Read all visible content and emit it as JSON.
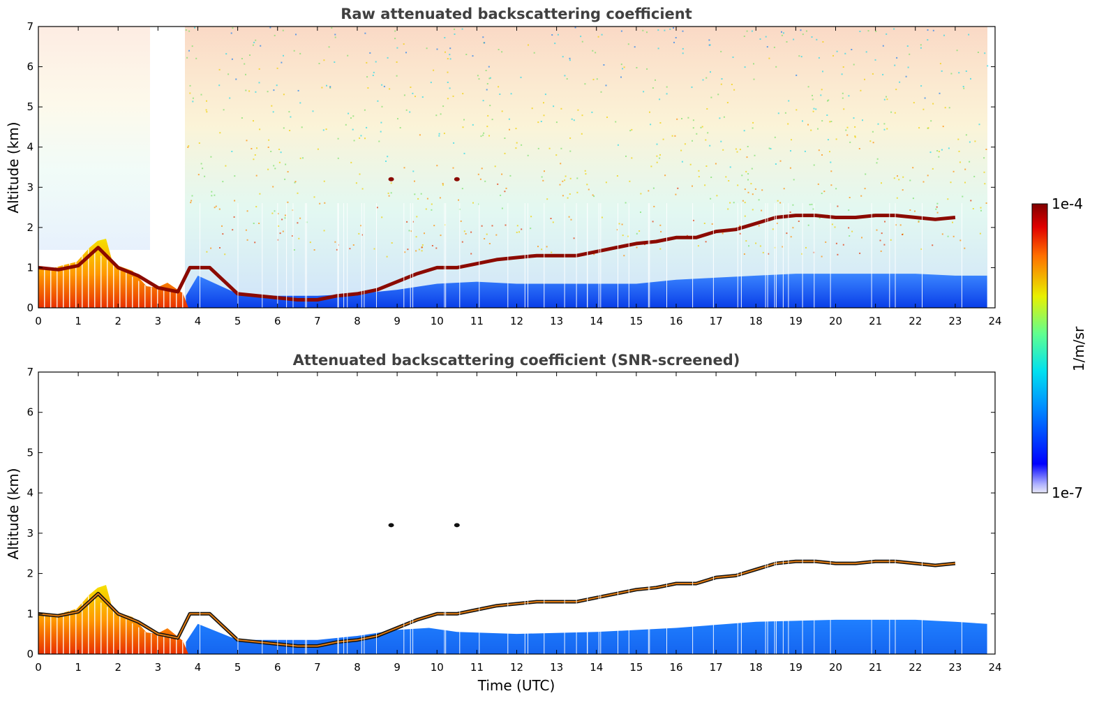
{
  "colors": {
    "cloud_layer": "#8b0a00",
    "cloud_edge": "#111111",
    "boundary_layer": "#1a5af5",
    "axis": "#000000",
    "title": "#404040"
  },
  "colorbar": {
    "label": "1/m/sr",
    "max_label": "1e-4",
    "min_label": "1e-7",
    "range": [
      1e-07,
      0.0001
    ],
    "scale": "log",
    "colormap": "jet"
  },
  "chart_data": [
    {
      "type": "heatmap",
      "title": "Raw attenuated backscattering coefficient",
      "xlabel": "",
      "ylabel": "Altitude (km)",
      "xlim": [
        0,
        24
      ],
      "ylim": [
        0,
        7
      ],
      "x_ticks": [
        "0",
        "1",
        "2",
        "3",
        "4",
        "5",
        "6",
        "7",
        "8",
        "9",
        "10",
        "11",
        "12",
        "13",
        "14",
        "15",
        "16",
        "17",
        "18",
        "19",
        "20",
        "21",
        "22",
        "23",
        "24"
      ],
      "y_ticks": [
        "0",
        "1",
        "2",
        "3",
        "4",
        "5",
        "6",
        "7"
      ],
      "cloud_layer": {
        "time": [
          0,
          0.5,
          1,
          1.5,
          2,
          2.5,
          3,
          3.5,
          3.8,
          4.3,
          5,
          5.5,
          6,
          6.5,
          7,
          7.5,
          8,
          8.5,
          9,
          9.5,
          10,
          10.5,
          11,
          11.5,
          12,
          12.5,
          13,
          13.5,
          14,
          14.5,
          15,
          15.5,
          16,
          16.5,
          17,
          17.5,
          18,
          18.5,
          19,
          19.5,
          20,
          20.5,
          21,
          21.5,
          22,
          22.5,
          23
        ],
        "altitude_km": [
          1.0,
          0.95,
          1.05,
          1.5,
          1.0,
          0.8,
          0.5,
          0.4,
          1.0,
          1.0,
          0.35,
          0.3,
          0.25,
          0.2,
          0.2,
          0.3,
          0.35,
          0.45,
          0.65,
          0.85,
          1.0,
          1.0,
          1.1,
          1.2,
          1.25,
          1.3,
          1.3,
          1.3,
          1.4,
          1.5,
          1.6,
          1.65,
          1.75,
          1.75,
          1.9,
          1.95,
          2.1,
          2.25,
          2.3,
          2.3,
          2.25,
          2.25,
          2.3,
          2.3,
          2.25,
          2.2,
          2.25
        ]
      },
      "boundary_layer": {
        "time": [
          3.7,
          4,
          5,
          6,
          7,
          8,
          9,
          10,
          11,
          12,
          13,
          14,
          15,
          16,
          17,
          18,
          19,
          20,
          21,
          22,
          23,
          23.8
        ],
        "top_km": [
          0.3,
          0.8,
          0.35,
          0.3,
          0.3,
          0.35,
          0.45,
          0.6,
          0.65,
          0.6,
          0.6,
          0.6,
          0.6,
          0.7,
          0.75,
          0.8,
          0.85,
          0.85,
          0.85,
          0.85,
          0.8,
          0.8
        ]
      },
      "elevated_features": [
        {
          "time": 8.85,
          "altitude_km": 3.2
        },
        {
          "time": 10.5,
          "altitude_km": 3.2
        }
      ]
    },
    {
      "type": "heatmap",
      "title": "Attenuated backscattering coefficient (SNR-screened)",
      "xlabel": "Time (UTC)",
      "ylabel": "Altitude (km)",
      "xlim": [
        0,
        24
      ],
      "ylim": [
        0,
        7
      ],
      "x_ticks": [
        "0",
        "1",
        "2",
        "3",
        "4",
        "5",
        "6",
        "7",
        "8",
        "9",
        "10",
        "11",
        "12",
        "13",
        "14",
        "15",
        "16",
        "17",
        "18",
        "19",
        "20",
        "21",
        "22",
        "23",
        "24"
      ],
      "y_ticks": [
        "0",
        "1",
        "2",
        "3",
        "4",
        "5",
        "6",
        "7"
      ],
      "boundary_layer_screened": {
        "time": [
          3.7,
          4,
          5,
          6,
          7,
          8,
          9,
          9.8,
          10.5,
          12,
          14,
          16,
          18,
          20,
          21,
          22,
          23,
          23.8
        ],
        "top_km": [
          0.3,
          0.75,
          0.35,
          0.35,
          0.35,
          0.45,
          0.6,
          0.65,
          0.55,
          0.5,
          0.55,
          0.65,
          0.8,
          0.85,
          0.85,
          0.85,
          0.8,
          0.75
        ]
      }
    }
  ]
}
